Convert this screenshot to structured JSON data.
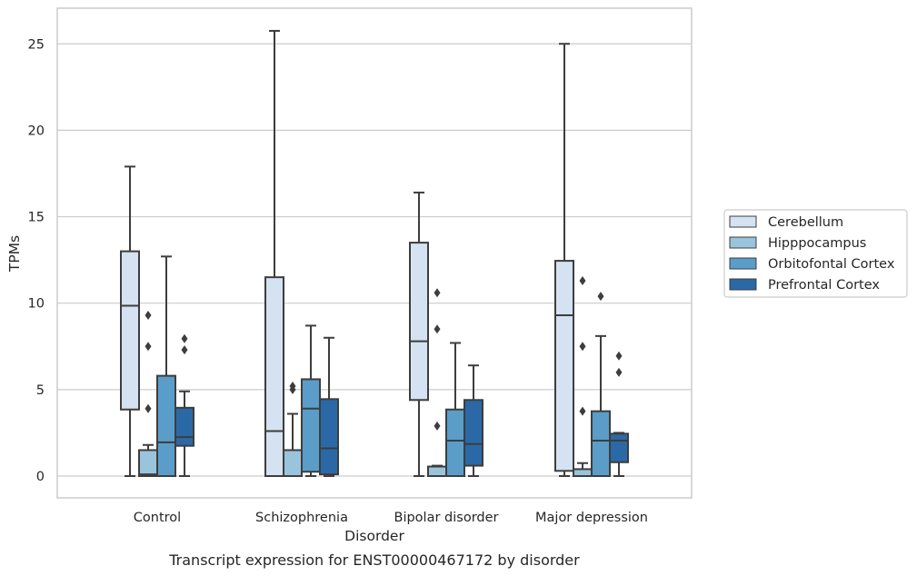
{
  "caption": "Transcript expression for ENST00000467172 by disorder",
  "chart_data": {
    "type": "box",
    "xlabel": "Disorder",
    "ylabel": "TPMs",
    "ylim": [
      -1.25,
      27.0
    ],
    "yticks": [
      0,
      5,
      10,
      15,
      20,
      25
    ],
    "grid": "horizontal",
    "legend_position": "right",
    "categories": [
      "Control",
      "Schizophrenia",
      "Bipolar disorder",
      "Major depression"
    ],
    "series": [
      {
        "name": "Cerebellum",
        "color": "#d4e2f1",
        "boxes": [
          {
            "whislo": 0.0,
            "q1": 3.85,
            "med": 9.85,
            "q3": 13.0,
            "whishi": 17.9,
            "fliers": []
          },
          {
            "whislo": 0.0,
            "q1": 0.0,
            "med": 2.6,
            "q3": 11.5,
            "whishi": 25.75,
            "fliers": []
          },
          {
            "whislo": 0.0,
            "q1": 4.4,
            "med": 7.8,
            "q3": 13.5,
            "whishi": 16.4,
            "fliers": []
          },
          {
            "whislo": 0.0,
            "q1": 0.3,
            "med": 9.3,
            "q3": 12.45,
            "whishi": 25.0,
            "fliers": []
          }
        ]
      },
      {
        "name": "Hipppocampus",
        "color": "#9ac4dc",
        "boxes": [
          {
            "whislo": 0.0,
            "q1": 0.0,
            "med": 0.1,
            "q3": 1.5,
            "whishi": 1.8,
            "fliers": [
              3.9,
              7.5,
              9.3
            ]
          },
          {
            "whislo": 0.0,
            "q1": 0.0,
            "med": 0.0,
            "q3": 1.5,
            "whishi": 3.6,
            "fliers": [
              5.0,
              5.2
            ]
          },
          {
            "whislo": 0.0,
            "q1": 0.0,
            "med": 0.0,
            "q3": 0.55,
            "whishi": 0.6,
            "fliers": [
              2.9,
              8.5,
              10.6
            ]
          },
          {
            "whislo": 0.0,
            "q1": 0.0,
            "med": 0.0,
            "q3": 0.4,
            "whishi": 0.75,
            "fliers": [
              3.75,
              7.5,
              11.3
            ]
          }
        ]
      },
      {
        "name": "Orbitofontal Cortex",
        "color": "#5a9dc9",
        "boxes": [
          {
            "whislo": 0.0,
            "q1": 0.0,
            "med": 1.95,
            "q3": 5.8,
            "whishi": 12.7,
            "fliers": []
          },
          {
            "whislo": 0.0,
            "q1": 0.25,
            "med": 3.9,
            "q3": 5.6,
            "whishi": 8.7,
            "fliers": []
          },
          {
            "whislo": 0.0,
            "q1": 0.0,
            "med": 2.05,
            "q3": 3.85,
            "whishi": 7.7,
            "fliers": []
          },
          {
            "whislo": 0.0,
            "q1": 0.0,
            "med": 2.05,
            "q3": 3.75,
            "whishi": 8.1,
            "fliers": [
              10.4
            ]
          }
        ]
      },
      {
        "name": "Prefrontal Cortex",
        "color": "#2b69a6",
        "boxes": [
          {
            "whislo": 0.0,
            "q1": 1.75,
            "med": 2.25,
            "q3": 3.95,
            "whishi": 4.9,
            "fliers": [
              7.3,
              7.95
            ]
          },
          {
            "whislo": 0.0,
            "q1": 0.1,
            "med": 1.6,
            "q3": 4.45,
            "whishi": 8.0,
            "fliers": []
          },
          {
            "whislo": 0.0,
            "q1": 0.6,
            "med": 1.85,
            "q3": 4.4,
            "whishi": 6.4,
            "fliers": []
          },
          {
            "whislo": 0.0,
            "q1": 0.8,
            "med": 2.05,
            "q3": 2.45,
            "whishi": 2.5,
            "fliers": [
              6.0,
              6.95
            ]
          }
        ]
      }
    ]
  }
}
